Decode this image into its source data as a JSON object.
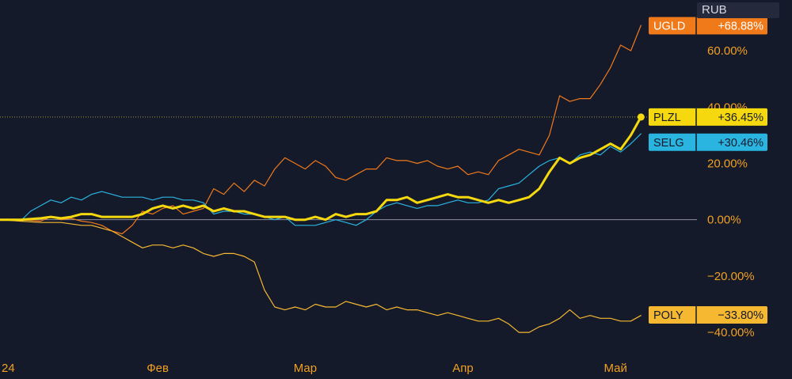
{
  "currency": "RUB",
  "chart_data": {
    "type": "line",
    "ylim": [
      -47,
      78
    ],
    "y_ticks": [
      {
        "value": 60,
        "label": "60.00%"
      },
      {
        "value": 40,
        "label": "40.00%"
      },
      {
        "value": 20,
        "label": "20.00%"
      },
      {
        "value": 0,
        "label": "0.00%"
      },
      {
        "value": -20,
        "label": "−20.00%"
      },
      {
        "value": -40,
        "label": "−40.00%"
      }
    ],
    "x_ticks": [
      {
        "date": "2024-01-01",
        "label": "24"
      },
      {
        "date": "2024-02-01",
        "label": "Фев"
      },
      {
        "date": "2024-03-01",
        "label": "Мар"
      },
      {
        "date": "2024-04-01",
        "label": "Апр"
      },
      {
        "date": "2024-05-01",
        "label": "Май"
      }
    ],
    "x_range": [
      "2024-01-01",
      "2024-05-17"
    ],
    "series": [
      {
        "name": "UGLD",
        "color": "#f07a1a",
        "last_label": "+68.88%",
        "width": 1.2,
        "bold": false,
        "points": [
          [
            "2024-01-01",
            0
          ],
          [
            "2024-01-05",
            0
          ],
          [
            "2024-01-09",
            -0.5
          ],
          [
            "2024-01-11",
            1
          ],
          [
            "2024-01-13",
            0
          ],
          [
            "2024-01-15",
            0.5
          ],
          [
            "2024-01-17",
            -0.5
          ],
          [
            "2024-01-19",
            -1
          ],
          [
            "2024-01-21",
            -2
          ],
          [
            "2024-01-23",
            -4
          ],
          [
            "2024-01-25",
            -5
          ],
          [
            "2024-01-27",
            -2
          ],
          [
            "2024-01-29",
            3
          ],
          [
            "2024-01-31",
            2
          ],
          [
            "2024-02-02",
            4
          ],
          [
            "2024-02-04",
            5
          ],
          [
            "2024-02-06",
            2
          ],
          [
            "2024-02-08",
            3
          ],
          [
            "2024-02-10",
            4
          ],
          [
            "2024-02-12",
            11
          ],
          [
            "2024-02-14",
            9
          ],
          [
            "2024-02-16",
            13
          ],
          [
            "2024-02-18",
            10
          ],
          [
            "2024-02-20",
            14
          ],
          [
            "2024-02-22",
            12
          ],
          [
            "2024-02-24",
            18
          ],
          [
            "2024-02-26",
            22
          ],
          [
            "2024-02-28",
            20
          ],
          [
            "2024-03-01",
            18
          ],
          [
            "2024-03-03",
            21
          ],
          [
            "2024-03-05",
            19
          ],
          [
            "2024-03-07",
            15
          ],
          [
            "2024-03-09",
            14
          ],
          [
            "2024-03-11",
            16
          ],
          [
            "2024-03-13",
            18
          ],
          [
            "2024-03-15",
            18
          ],
          [
            "2024-03-17",
            22
          ],
          [
            "2024-03-19",
            21
          ],
          [
            "2024-03-21",
            21
          ],
          [
            "2024-03-23",
            20
          ],
          [
            "2024-03-25",
            21
          ],
          [
            "2024-03-27",
            19
          ],
          [
            "2024-03-29",
            18
          ],
          [
            "2024-03-31",
            19
          ],
          [
            "2024-04-02",
            16
          ],
          [
            "2024-04-04",
            17
          ],
          [
            "2024-04-06",
            16
          ],
          [
            "2024-04-08",
            21
          ],
          [
            "2024-04-10",
            23
          ],
          [
            "2024-04-12",
            25
          ],
          [
            "2024-04-14",
            24
          ],
          [
            "2024-04-16",
            23
          ],
          [
            "2024-04-18",
            30
          ],
          [
            "2024-04-20",
            44
          ],
          [
            "2024-04-22",
            42
          ],
          [
            "2024-04-24",
            43
          ],
          [
            "2024-04-26",
            43
          ],
          [
            "2024-04-28",
            48
          ],
          [
            "2024-04-30",
            54
          ],
          [
            "2024-05-02",
            62
          ],
          [
            "2024-05-04",
            60
          ],
          [
            "2024-05-06",
            69
          ]
        ]
      },
      {
        "name": "SELG",
        "color": "#2ab4e0",
        "last_label": "+30.46%",
        "width": 1.2,
        "bold": false,
        "points": [
          [
            "2024-01-01",
            0
          ],
          [
            "2024-01-03",
            0
          ],
          [
            "2024-01-05",
            -0.5
          ],
          [
            "2024-01-07",
            3
          ],
          [
            "2024-01-09",
            5
          ],
          [
            "2024-01-11",
            7
          ],
          [
            "2024-01-13",
            6
          ],
          [
            "2024-01-15",
            8
          ],
          [
            "2024-01-17",
            7
          ],
          [
            "2024-01-19",
            9
          ],
          [
            "2024-01-21",
            10
          ],
          [
            "2024-01-23",
            9
          ],
          [
            "2024-01-25",
            8
          ],
          [
            "2024-01-27",
            8
          ],
          [
            "2024-01-29",
            8
          ],
          [
            "2024-01-31",
            7
          ],
          [
            "2024-02-02",
            8
          ],
          [
            "2024-02-04",
            8
          ],
          [
            "2024-02-06",
            7
          ],
          [
            "2024-02-08",
            7
          ],
          [
            "2024-02-10",
            6
          ],
          [
            "2024-02-12",
            2
          ],
          [
            "2024-02-14",
            3
          ],
          [
            "2024-02-16",
            3
          ],
          [
            "2024-02-18",
            2
          ],
          [
            "2024-02-20",
            2
          ],
          [
            "2024-02-22",
            1
          ],
          [
            "2024-02-24",
            0
          ],
          [
            "2024-02-26",
            1
          ],
          [
            "2024-02-28",
            -2
          ],
          [
            "2024-03-01",
            -2
          ],
          [
            "2024-03-03",
            -2
          ],
          [
            "2024-03-05",
            -1
          ],
          [
            "2024-03-07",
            0
          ],
          [
            "2024-03-09",
            -1
          ],
          [
            "2024-03-11",
            -2
          ],
          [
            "2024-03-13",
            0
          ],
          [
            "2024-03-15",
            3
          ],
          [
            "2024-03-17",
            5
          ],
          [
            "2024-03-19",
            6
          ],
          [
            "2024-03-21",
            5
          ],
          [
            "2024-03-23",
            4
          ],
          [
            "2024-03-25",
            5
          ],
          [
            "2024-03-27",
            5
          ],
          [
            "2024-03-29",
            6
          ],
          [
            "2024-03-31",
            7
          ],
          [
            "2024-04-02",
            6
          ],
          [
            "2024-04-04",
            6
          ],
          [
            "2024-04-06",
            7
          ],
          [
            "2024-04-08",
            11
          ],
          [
            "2024-04-10",
            12
          ],
          [
            "2024-04-12",
            13
          ],
          [
            "2024-04-14",
            16
          ],
          [
            "2024-04-16",
            19
          ],
          [
            "2024-04-18",
            21
          ],
          [
            "2024-04-20",
            22
          ],
          [
            "2024-04-22",
            20
          ],
          [
            "2024-04-24",
            23
          ],
          [
            "2024-04-26",
            24
          ],
          [
            "2024-04-28",
            23
          ],
          [
            "2024-04-30",
            26
          ],
          [
            "2024-05-02",
            24
          ],
          [
            "2024-05-04",
            27
          ],
          [
            "2024-05-06",
            30.5
          ]
        ]
      },
      {
        "name": "POLY",
        "color": "#f5b830",
        "last_label": "−33.80%",
        "width": 1.2,
        "bold": false,
        "points": [
          [
            "2024-01-01",
            0
          ],
          [
            "2024-01-05",
            -0.5
          ],
          [
            "2024-01-09",
            -1
          ],
          [
            "2024-01-13",
            -1
          ],
          [
            "2024-01-17",
            -2
          ],
          [
            "2024-01-19",
            -2
          ],
          [
            "2024-01-21",
            -3
          ],
          [
            "2024-01-23",
            -4
          ],
          [
            "2024-01-25",
            -6
          ],
          [
            "2024-01-27",
            -8
          ],
          [
            "2024-01-29",
            -10
          ],
          [
            "2024-01-31",
            -9
          ],
          [
            "2024-02-02",
            -9
          ],
          [
            "2024-02-04",
            -10
          ],
          [
            "2024-02-06",
            -9
          ],
          [
            "2024-02-08",
            -10
          ],
          [
            "2024-02-10",
            -12
          ],
          [
            "2024-02-12",
            -13
          ],
          [
            "2024-02-14",
            -12
          ],
          [
            "2024-02-16",
            -12
          ],
          [
            "2024-02-18",
            -13
          ],
          [
            "2024-02-20",
            -15
          ],
          [
            "2024-02-22",
            -25
          ],
          [
            "2024-02-24",
            -31
          ],
          [
            "2024-02-26",
            -32
          ],
          [
            "2024-02-28",
            -31
          ],
          [
            "2024-03-01",
            -32
          ],
          [
            "2024-03-03",
            -30
          ],
          [
            "2024-03-05",
            -31
          ],
          [
            "2024-03-07",
            -31
          ],
          [
            "2024-03-09",
            -29
          ],
          [
            "2024-03-11",
            -30
          ],
          [
            "2024-03-13",
            -31
          ],
          [
            "2024-03-15",
            -30
          ],
          [
            "2024-03-17",
            -32
          ],
          [
            "2024-03-19",
            -31
          ],
          [
            "2024-03-21",
            -32
          ],
          [
            "2024-03-23",
            -32
          ],
          [
            "2024-03-25",
            -33
          ],
          [
            "2024-03-27",
            -34
          ],
          [
            "2024-03-29",
            -33
          ],
          [
            "2024-03-31",
            -34
          ],
          [
            "2024-04-02",
            -35
          ],
          [
            "2024-04-04",
            -36
          ],
          [
            "2024-04-06",
            -36
          ],
          [
            "2024-04-08",
            -35
          ],
          [
            "2024-04-10",
            -37
          ],
          [
            "2024-04-12",
            -40
          ],
          [
            "2024-04-14",
            -40
          ],
          [
            "2024-04-16",
            -38
          ],
          [
            "2024-04-18",
            -37
          ],
          [
            "2024-04-20",
            -35
          ],
          [
            "2024-04-22",
            -32
          ],
          [
            "2024-04-24",
            -35
          ],
          [
            "2024-04-26",
            -34
          ],
          [
            "2024-04-28",
            -35
          ],
          [
            "2024-04-30",
            -35
          ],
          [
            "2024-05-02",
            -36
          ],
          [
            "2024-05-04",
            -36
          ],
          [
            "2024-05-06",
            -34
          ]
        ]
      },
      {
        "name": "PLZL",
        "color": "#f5d90e",
        "last_label": "+36.45%",
        "width": 3,
        "bold": true,
        "points": [
          [
            "2024-01-01",
            0
          ],
          [
            "2024-01-05",
            0
          ],
          [
            "2024-01-09",
            0.5
          ],
          [
            "2024-01-11",
            1
          ],
          [
            "2024-01-13",
            0.5
          ],
          [
            "2024-01-15",
            1
          ],
          [
            "2024-01-17",
            2
          ],
          [
            "2024-01-19",
            2
          ],
          [
            "2024-01-21",
            1
          ],
          [
            "2024-01-23",
            1
          ],
          [
            "2024-01-25",
            1
          ],
          [
            "2024-01-27",
            1
          ],
          [
            "2024-01-29",
            2
          ],
          [
            "2024-01-31",
            4
          ],
          [
            "2024-02-02",
            5
          ],
          [
            "2024-02-04",
            4
          ],
          [
            "2024-02-06",
            5
          ],
          [
            "2024-02-08",
            4
          ],
          [
            "2024-02-10",
            5
          ],
          [
            "2024-02-12",
            3
          ],
          [
            "2024-02-14",
            4
          ],
          [
            "2024-02-16",
            3
          ],
          [
            "2024-02-18",
            3
          ],
          [
            "2024-02-20",
            2
          ],
          [
            "2024-02-22",
            1
          ],
          [
            "2024-02-24",
            1
          ],
          [
            "2024-02-26",
            1
          ],
          [
            "2024-02-28",
            0
          ],
          [
            "2024-03-01",
            0
          ],
          [
            "2024-03-03",
            1
          ],
          [
            "2024-03-05",
            0
          ],
          [
            "2024-03-07",
            2
          ],
          [
            "2024-03-09",
            1
          ],
          [
            "2024-03-11",
            2
          ],
          [
            "2024-03-13",
            2
          ],
          [
            "2024-03-15",
            3
          ],
          [
            "2024-03-17",
            7
          ],
          [
            "2024-03-19",
            7
          ],
          [
            "2024-03-21",
            8
          ],
          [
            "2024-03-23",
            6
          ],
          [
            "2024-03-25",
            7
          ],
          [
            "2024-03-27",
            8
          ],
          [
            "2024-03-29",
            9
          ],
          [
            "2024-03-31",
            8
          ],
          [
            "2024-04-02",
            8
          ],
          [
            "2024-04-04",
            7
          ],
          [
            "2024-04-06",
            6
          ],
          [
            "2024-04-08",
            7
          ],
          [
            "2024-04-10",
            6
          ],
          [
            "2024-04-12",
            7
          ],
          [
            "2024-04-14",
            8
          ],
          [
            "2024-04-16",
            11
          ],
          [
            "2024-04-18",
            17
          ],
          [
            "2024-04-20",
            22
          ],
          [
            "2024-04-22",
            20
          ],
          [
            "2024-04-24",
            22
          ],
          [
            "2024-04-26",
            23
          ],
          [
            "2024-04-28",
            25
          ],
          [
            "2024-04-30",
            27
          ],
          [
            "2024-05-02",
            25
          ],
          [
            "2024-05-04",
            30
          ],
          [
            "2024-05-06",
            36.45
          ]
        ]
      }
    ],
    "tags": [
      {
        "series": "UGLD",
        "label": "+68.88%",
        "bg": "#f07a1a",
        "fg": "#ffffff",
        "anchor_value": 68.88
      },
      {
        "series": "PLZL",
        "label": "+36.45%",
        "bg": "#f5d90e",
        "fg": "#151a2b",
        "anchor_value": 36.45
      },
      {
        "series": "SELG",
        "label": "+30.46%",
        "bg": "#2ab4e0",
        "fg": "#151a2b",
        "anchor_value": 27.5
      },
      {
        "series": "POLY",
        "label": "−33.80%",
        "bg": "#f5b830",
        "fg": "#151a2b",
        "anchor_value": -33.8
      }
    ],
    "zero_line": 0,
    "last_value_guide": 36.45,
    "grid": false
  }
}
